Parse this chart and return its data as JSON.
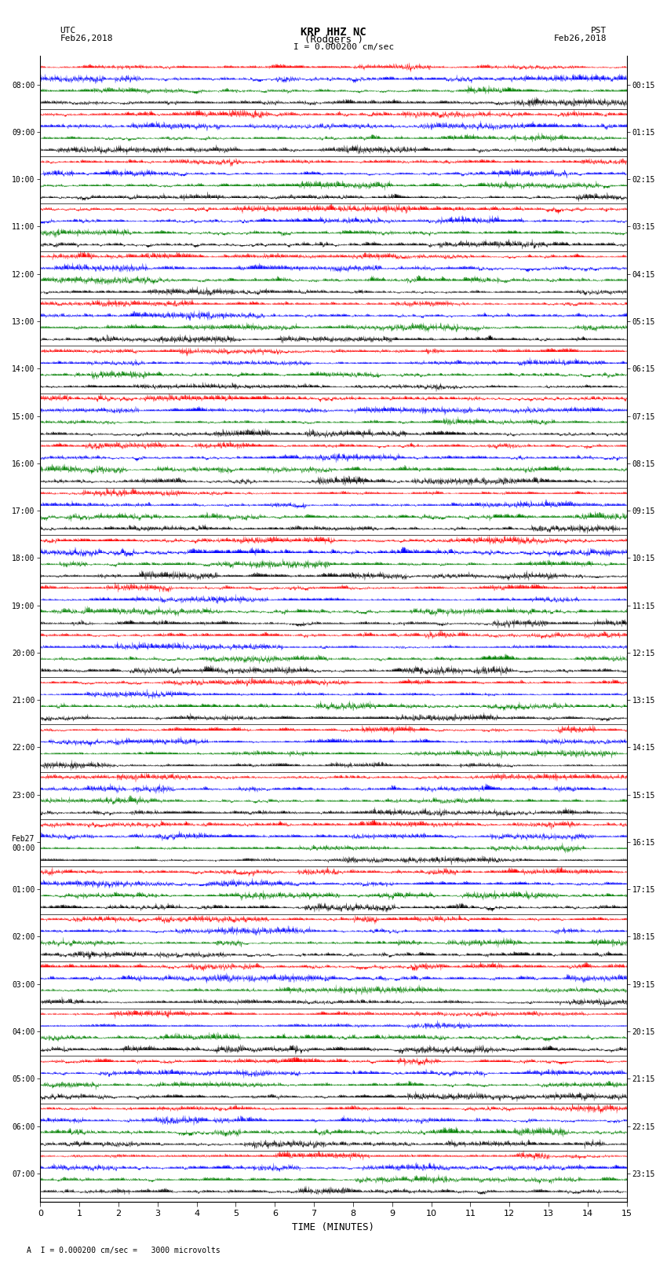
{
  "title_line1": "KRP HHZ NC",
  "title_line2": "(Rodgers )",
  "scale_text": "I = 0.000200 cm/sec",
  "left_label_line1": "UTC",
  "left_label_line2": "Feb26,2018",
  "right_label_line1": "PST",
  "right_label_line2": "Feb26,2018",
  "bottom_label": "A  I = 0.000200 cm/sec =   3000 microvolts",
  "xlabel": "TIME (MINUTES)",
  "utc_times": [
    "08:00",
    "09:00",
    "10:00",
    "11:00",
    "12:00",
    "13:00",
    "14:00",
    "15:00",
    "16:00",
    "17:00",
    "18:00",
    "19:00",
    "20:00",
    "21:00",
    "22:00",
    "23:00",
    "Feb27\n00:00",
    "01:00",
    "02:00",
    "03:00",
    "04:00",
    "05:00",
    "06:00",
    "07:00"
  ],
  "pst_times": [
    "00:15",
    "01:15",
    "02:15",
    "03:15",
    "04:15",
    "05:15",
    "06:15",
    "07:15",
    "08:15",
    "09:15",
    "10:15",
    "11:15",
    "12:15",
    "13:15",
    "14:15",
    "15:15",
    "16:15",
    "17:15",
    "18:15",
    "19:15",
    "20:15",
    "21:15",
    "22:15",
    "23:15"
  ],
  "num_traces": 24,
  "minutes_per_trace": 15,
  "samples_per_minute": 200,
  "sub_colors": [
    "red",
    "blue",
    "green",
    "black"
  ],
  "num_sub": 4,
  "background_color": "white",
  "amplitude_scale": 0.45,
  "fig_width": 8.5,
  "fig_height": 16.13,
  "dpi": 100,
  "xlim": [
    0,
    15
  ],
  "xticks": [
    0,
    1,
    2,
    3,
    4,
    5,
    6,
    7,
    8,
    9,
    10,
    11,
    12,
    13,
    14,
    15
  ]
}
